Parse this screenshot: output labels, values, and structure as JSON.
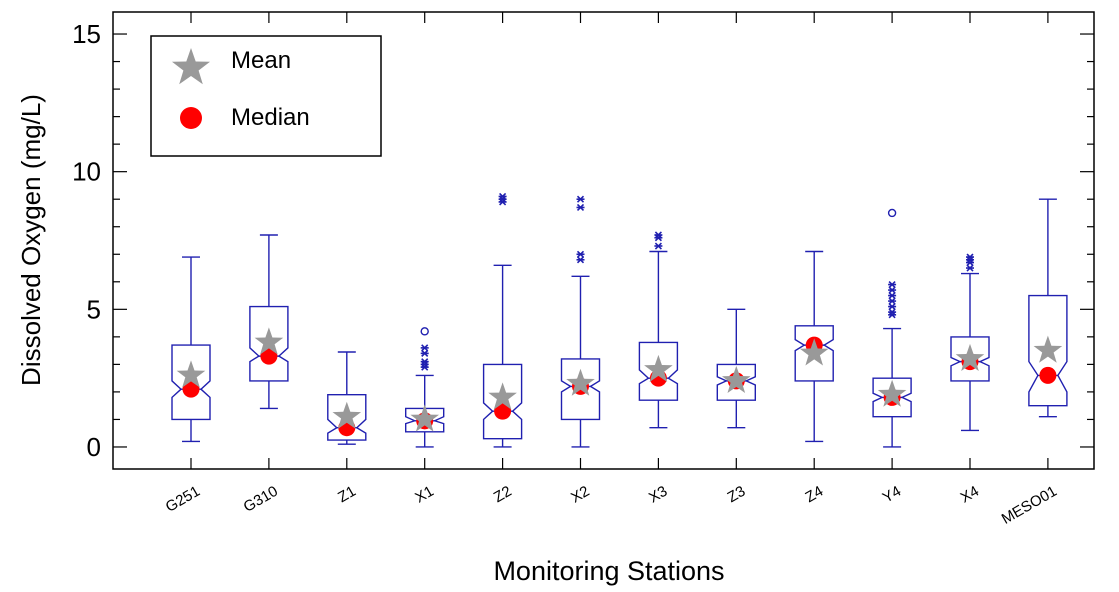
{
  "chart_data": {
    "type": "box",
    "ylabel": "Dissolved Oxygen (mg/L)",
    "xlabel": "Monitoring Stations",
    "ylim": [
      -0.8,
      15.8
    ],
    "yticks": [
      0,
      5,
      10,
      15
    ],
    "legend": {
      "placement": "top-left",
      "entries": [
        {
          "label": "Mean",
          "marker": "star",
          "color": "#999999"
        },
        {
          "label": "Median",
          "marker": "circle",
          "color": "#ff0000"
        }
      ]
    },
    "colors": {
      "box": "#2020b0",
      "mean": "#999999",
      "median": "#ff0000"
    },
    "categories": [
      "G251",
      "G310",
      "Z1",
      "X1",
      "Z2",
      "X2",
      "X3",
      "Z3",
      "Z4",
      "Y4",
      "X4",
      "MESO01"
    ],
    "stations": [
      {
        "name": "G251",
        "whisker_low": 0.2,
        "q1": 1.0,
        "median": 2.1,
        "q3": 3.7,
        "whisker_high": 6.9,
        "mean": 2.6,
        "notch_low": 1.8,
        "notch_high": 2.4,
        "outliers": []
      },
      {
        "name": "G310",
        "whisker_low": 1.4,
        "q1": 2.4,
        "median": 3.3,
        "q3": 5.1,
        "whisker_high": 7.7,
        "mean": 3.8,
        "notch_low": 3.1,
        "notch_high": 3.6,
        "outliers": []
      },
      {
        "name": "Z1",
        "whisker_low": 0.1,
        "q1": 0.25,
        "median": 0.7,
        "q3": 1.9,
        "whisker_high": 3.45,
        "mean": 1.1,
        "notch_low": 0.5,
        "notch_high": 1.0,
        "outliers": []
      },
      {
        "name": "X1",
        "whisker_low": 0.0,
        "q1": 0.55,
        "median": 0.95,
        "q3": 1.4,
        "whisker_high": 2.6,
        "mean": 1.0,
        "notch_low": 0.85,
        "notch_high": 1.1,
        "outliers": [
          2.9,
          3.0,
          3.1,
          3.4,
          3.6,
          4.2
        ]
      },
      {
        "name": "Z2",
        "whisker_low": 0.0,
        "q1": 0.3,
        "median": 1.3,
        "q3": 3.0,
        "whisker_high": 6.6,
        "mean": 1.8,
        "notch_low": 1.0,
        "notch_high": 1.6,
        "outliers": [
          8.9,
          9.0,
          9.1
        ]
      },
      {
        "name": "X2",
        "whisker_low": 0.0,
        "q1": 1.0,
        "median": 2.2,
        "q3": 3.2,
        "whisker_high": 6.2,
        "mean": 2.3,
        "notch_low": 2.0,
        "notch_high": 2.4,
        "outliers": [
          6.8,
          7.0,
          8.7,
          9.0
        ]
      },
      {
        "name": "X3",
        "whisker_low": 0.7,
        "q1": 1.7,
        "median": 2.5,
        "q3": 3.8,
        "whisker_high": 7.1,
        "mean": 2.8,
        "notch_low": 2.3,
        "notch_high": 2.8,
        "outliers": [
          7.3,
          7.6,
          7.7
        ]
      },
      {
        "name": "Z3",
        "whisker_low": 0.7,
        "q1": 1.7,
        "median": 2.4,
        "q3": 3.0,
        "whisker_high": 5.0,
        "mean": 2.4,
        "notch_low": 2.25,
        "notch_high": 2.55,
        "outliers": []
      },
      {
        "name": "Z4",
        "whisker_low": 0.2,
        "q1": 2.4,
        "median": 3.7,
        "q3": 4.4,
        "whisker_high": 7.1,
        "mean": 3.4,
        "notch_low": 3.5,
        "notch_high": 3.9,
        "outliers": []
      },
      {
        "name": "Y4",
        "whisker_low": 0.0,
        "q1": 1.1,
        "median": 1.8,
        "q3": 2.5,
        "whisker_high": 4.3,
        "mean": 1.9,
        "notch_low": 1.65,
        "notch_high": 1.95,
        "outliers": [
          4.8,
          4.9,
          5.1,
          5.3,
          5.5,
          5.7,
          5.9,
          8.5
        ]
      },
      {
        "name": "X4",
        "whisker_low": 0.6,
        "q1": 2.4,
        "median": 3.1,
        "q3": 4.0,
        "whisker_high": 6.3,
        "mean": 3.2,
        "notch_low": 2.95,
        "notch_high": 3.25,
        "outliers": [
          6.5,
          6.7,
          6.8,
          6.9
        ]
      },
      {
        "name": "MESO01",
        "whisker_low": 1.1,
        "q1": 1.5,
        "median": 2.6,
        "q3": 5.5,
        "whisker_high": 9.0,
        "mean": 3.5,
        "notch_low": 2.0,
        "notch_high": 3.1,
        "outliers": []
      }
    ]
  }
}
